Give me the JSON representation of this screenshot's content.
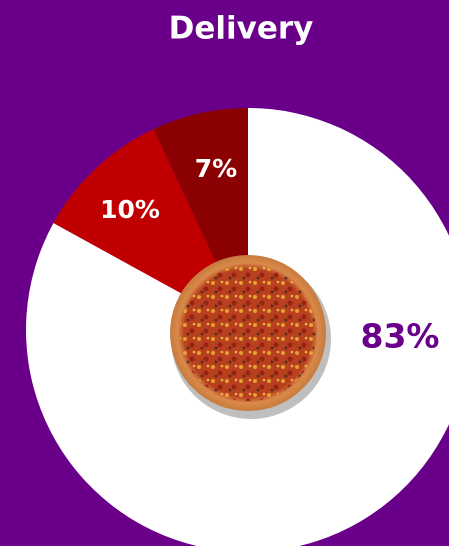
{
  "chart_data": {
    "type": "pie",
    "title": "Delivery",
    "values": [
      83,
      10,
      7
    ],
    "value_labels": [
      "83%",
      "10%",
      "7%"
    ],
    "colors": [
      "#ffffff",
      "#c00000",
      "#8b0000"
    ]
  }
}
